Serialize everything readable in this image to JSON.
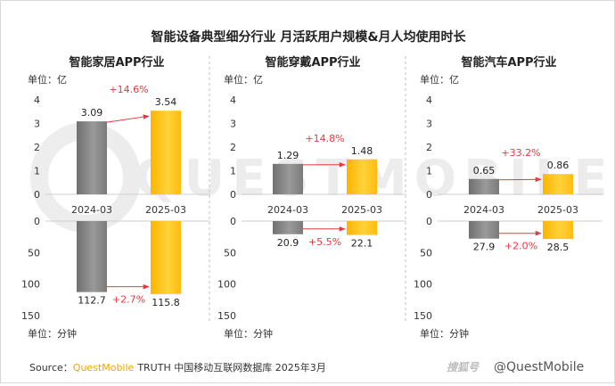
{
  "title": "智能设备典型细分行业 月活跃用户规模&月人均使用时长",
  "source": {
    "prefix": "Source：",
    "brand": "QuestMobile",
    "text": "TRUTH 中国移动互联网数据库 2025年3月"
  },
  "watermark": "QUESTMOBILE",
  "credit": {
    "logo_text": "搜狐号",
    "handle": "@QuestMobile"
  },
  "colors": {
    "bar_2024": "#8c8c8c",
    "bar_2025": "#ffc20e",
    "growth": "#e8383d",
    "divider": "#bfbfbf"
  },
  "chart_data": [
    {
      "type": "bar",
      "title": "智能家居APP行业",
      "categories": [
        "2024-03",
        "2025-03"
      ],
      "mau": {
        "unit": "单位：亿",
        "values": [
          3.09,
          3.54
        ],
        "ylim": [
          0,
          4
        ],
        "ticks": [
          0,
          1,
          2,
          3,
          4
        ],
        "growth": "+14.6%"
      },
      "duration": {
        "unit": "单位：分钟",
        "values": [
          112.7,
          115.8
        ],
        "ylim": [
          0,
          150
        ],
        "ticks": [
          0,
          50,
          100,
          150
        ],
        "growth": "+2.7%"
      }
    },
    {
      "type": "bar",
      "title": "智能穿戴APP行业",
      "categories": [
        "2024-03",
        "2025-03"
      ],
      "mau": {
        "unit": "单位：亿",
        "values": [
          1.29,
          1.48
        ],
        "ylim": [
          0,
          4
        ],
        "ticks": [
          0,
          1,
          2,
          3,
          4
        ],
        "growth": "+14.8%"
      },
      "duration": {
        "unit": "单位：分钟",
        "values": [
          20.9,
          22.1
        ],
        "ylim": [
          0,
          150
        ],
        "ticks": [
          0,
          50,
          100,
          150
        ],
        "growth": "+5.5%"
      }
    },
    {
      "type": "bar",
      "title": "智能汽车APP行业",
      "categories": [
        "2024-03",
        "2025-03"
      ],
      "mau": {
        "unit": "单位：亿",
        "values": [
          0.65,
          0.86
        ],
        "ylim": [
          0,
          4
        ],
        "ticks": [
          0,
          1,
          2,
          3,
          4
        ],
        "growth": "+33.2%"
      },
      "duration": {
        "unit": "单位：分钟",
        "values": [
          27.9,
          28.5
        ],
        "ylim": [
          0,
          150
        ],
        "ticks": [
          0,
          50,
          100,
          150
        ],
        "growth": "+2.0%"
      }
    }
  ]
}
